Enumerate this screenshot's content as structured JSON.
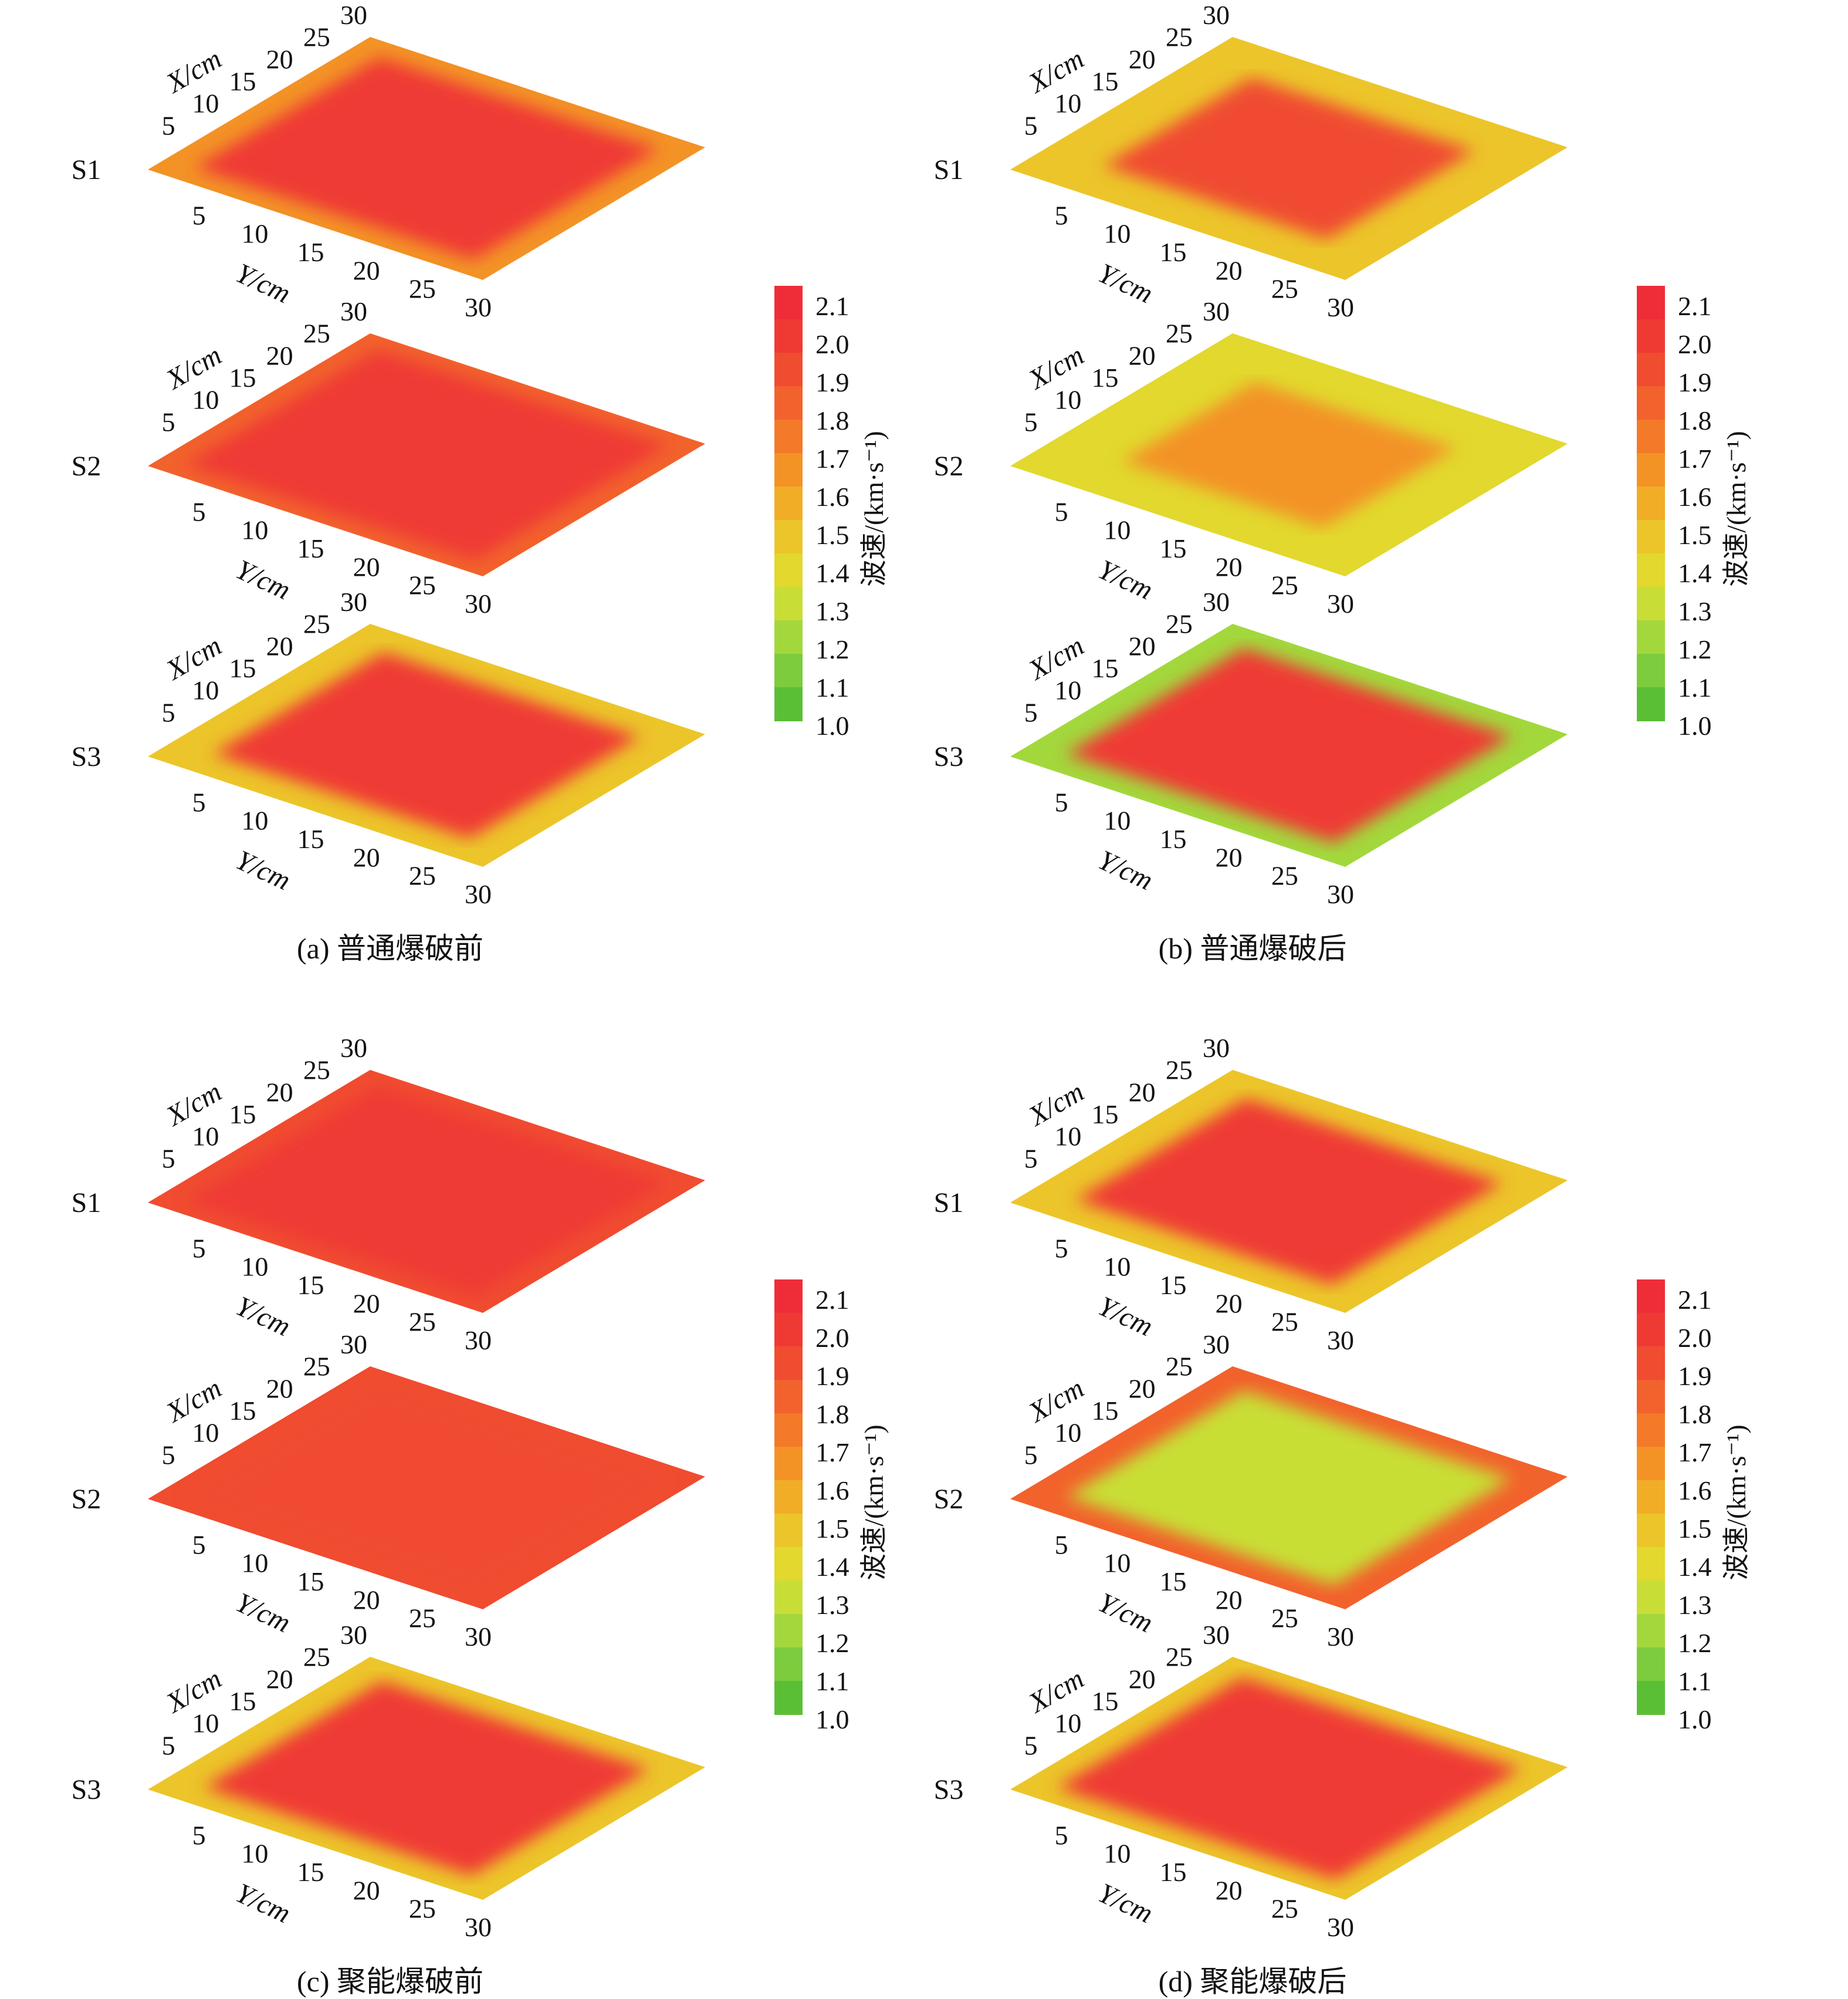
{
  "figure": {
    "colorbar": {
      "label": "波速/(km·s⁻¹)",
      "ticks": [
        "2.1",
        "2.0",
        "1.9",
        "1.8",
        "1.7",
        "1.6",
        "1.5",
        "1.4",
        "1.3",
        "1.2",
        "1.1",
        "1.0"
      ],
      "colors": [
        "#ee2d38",
        "#ef3a34",
        "#f04c30",
        "#f2622c",
        "#f37a28",
        "#f39326",
        "#f1ad26",
        "#ecc52a",
        "#e2d82e",
        "#c8de36",
        "#a3d83c",
        "#7ccc3e",
        "#5bbf36"
      ]
    },
    "axis_labels": {
      "x": "X/cm",
      "y": "Y/cm"
    },
    "tick_labels": [
      "5",
      "10",
      "15",
      "20",
      "25",
      "30"
    ],
    "section_labels": [
      "S1",
      "S2",
      "S3"
    ]
  },
  "chart_data": [
    {
      "type": "heatmap",
      "caption": "(a) 普通爆破前",
      "xlabel": "X/cm",
      "ylabel": "Y/cm",
      "xlim": [
        0,
        30
      ],
      "ylim": [
        0,
        30
      ],
      "colorbar_range": [
        1.0,
        2.1
      ],
      "sections": [
        {
          "name": "S1",
          "core_value": 2.05,
          "edge_value": 1.65,
          "edge_width_cm": 2.5
        },
        {
          "name": "S2",
          "core_value": 2.05,
          "edge_value": 1.85,
          "edge_width_cm": 2.0
        },
        {
          "name": "S3",
          "core_value": 2.05,
          "edge_value": 1.45,
          "edge_width_cm": 3.5
        }
      ]
    },
    {
      "type": "heatmap",
      "caption": "(b) 普通爆破后",
      "xlabel": "X/cm",
      "ylabel": "Y/cm",
      "xlim": [
        0,
        30
      ],
      "ylim": [
        0,
        30
      ],
      "colorbar_range": [
        1.0,
        2.1
      ],
      "sections": [
        {
          "name": "S1",
          "core_value": 1.9,
          "edge_value": 1.45,
          "edge_width_cm": 5.0
        },
        {
          "name": "S2",
          "core_value": 1.6,
          "edge_value": 1.35,
          "edge_width_cm": 6.0
        },
        {
          "name": "S3",
          "core_value": 2.0,
          "edge_value": 1.2,
          "edge_width_cm": 3.0
        }
      ]
    },
    {
      "type": "heatmap",
      "caption": "(c) 聚能爆破前",
      "xlabel": "X/cm",
      "ylabel": "Y/cm",
      "xlim": [
        0,
        30
      ],
      "ylim": [
        0,
        30
      ],
      "colorbar_range": [
        1.0,
        2.1
      ],
      "sections": [
        {
          "name": "S1",
          "core_value": 2.05,
          "edge_value": 1.9,
          "edge_width_cm": 2.0
        },
        {
          "name": "S2",
          "core_value": 1.95,
          "edge_value": 1.9,
          "edge_width_cm": 2.0
        },
        {
          "name": "S3",
          "core_value": 2.05,
          "edge_value": 1.45,
          "edge_width_cm": 3.0
        }
      ]
    },
    {
      "type": "heatmap",
      "caption": "(d) 聚能爆破后",
      "xlabel": "X/cm",
      "ylabel": "Y/cm",
      "xlim": [
        0,
        30
      ],
      "ylim": [
        0,
        30
      ],
      "colorbar_range": [
        1.0,
        2.1
      ],
      "sections": [
        {
          "name": "S1",
          "core_value": 2.0,
          "edge_value": 1.45,
          "edge_width_cm": 3.5
        },
        {
          "name": "S2",
          "core_value": 1.25,
          "edge_value": 1.8,
          "edge_width_cm": 3.0
        },
        {
          "name": "S3",
          "core_value": 2.0,
          "edge_value": 1.45,
          "edge_width_cm": 2.5
        }
      ]
    }
  ]
}
